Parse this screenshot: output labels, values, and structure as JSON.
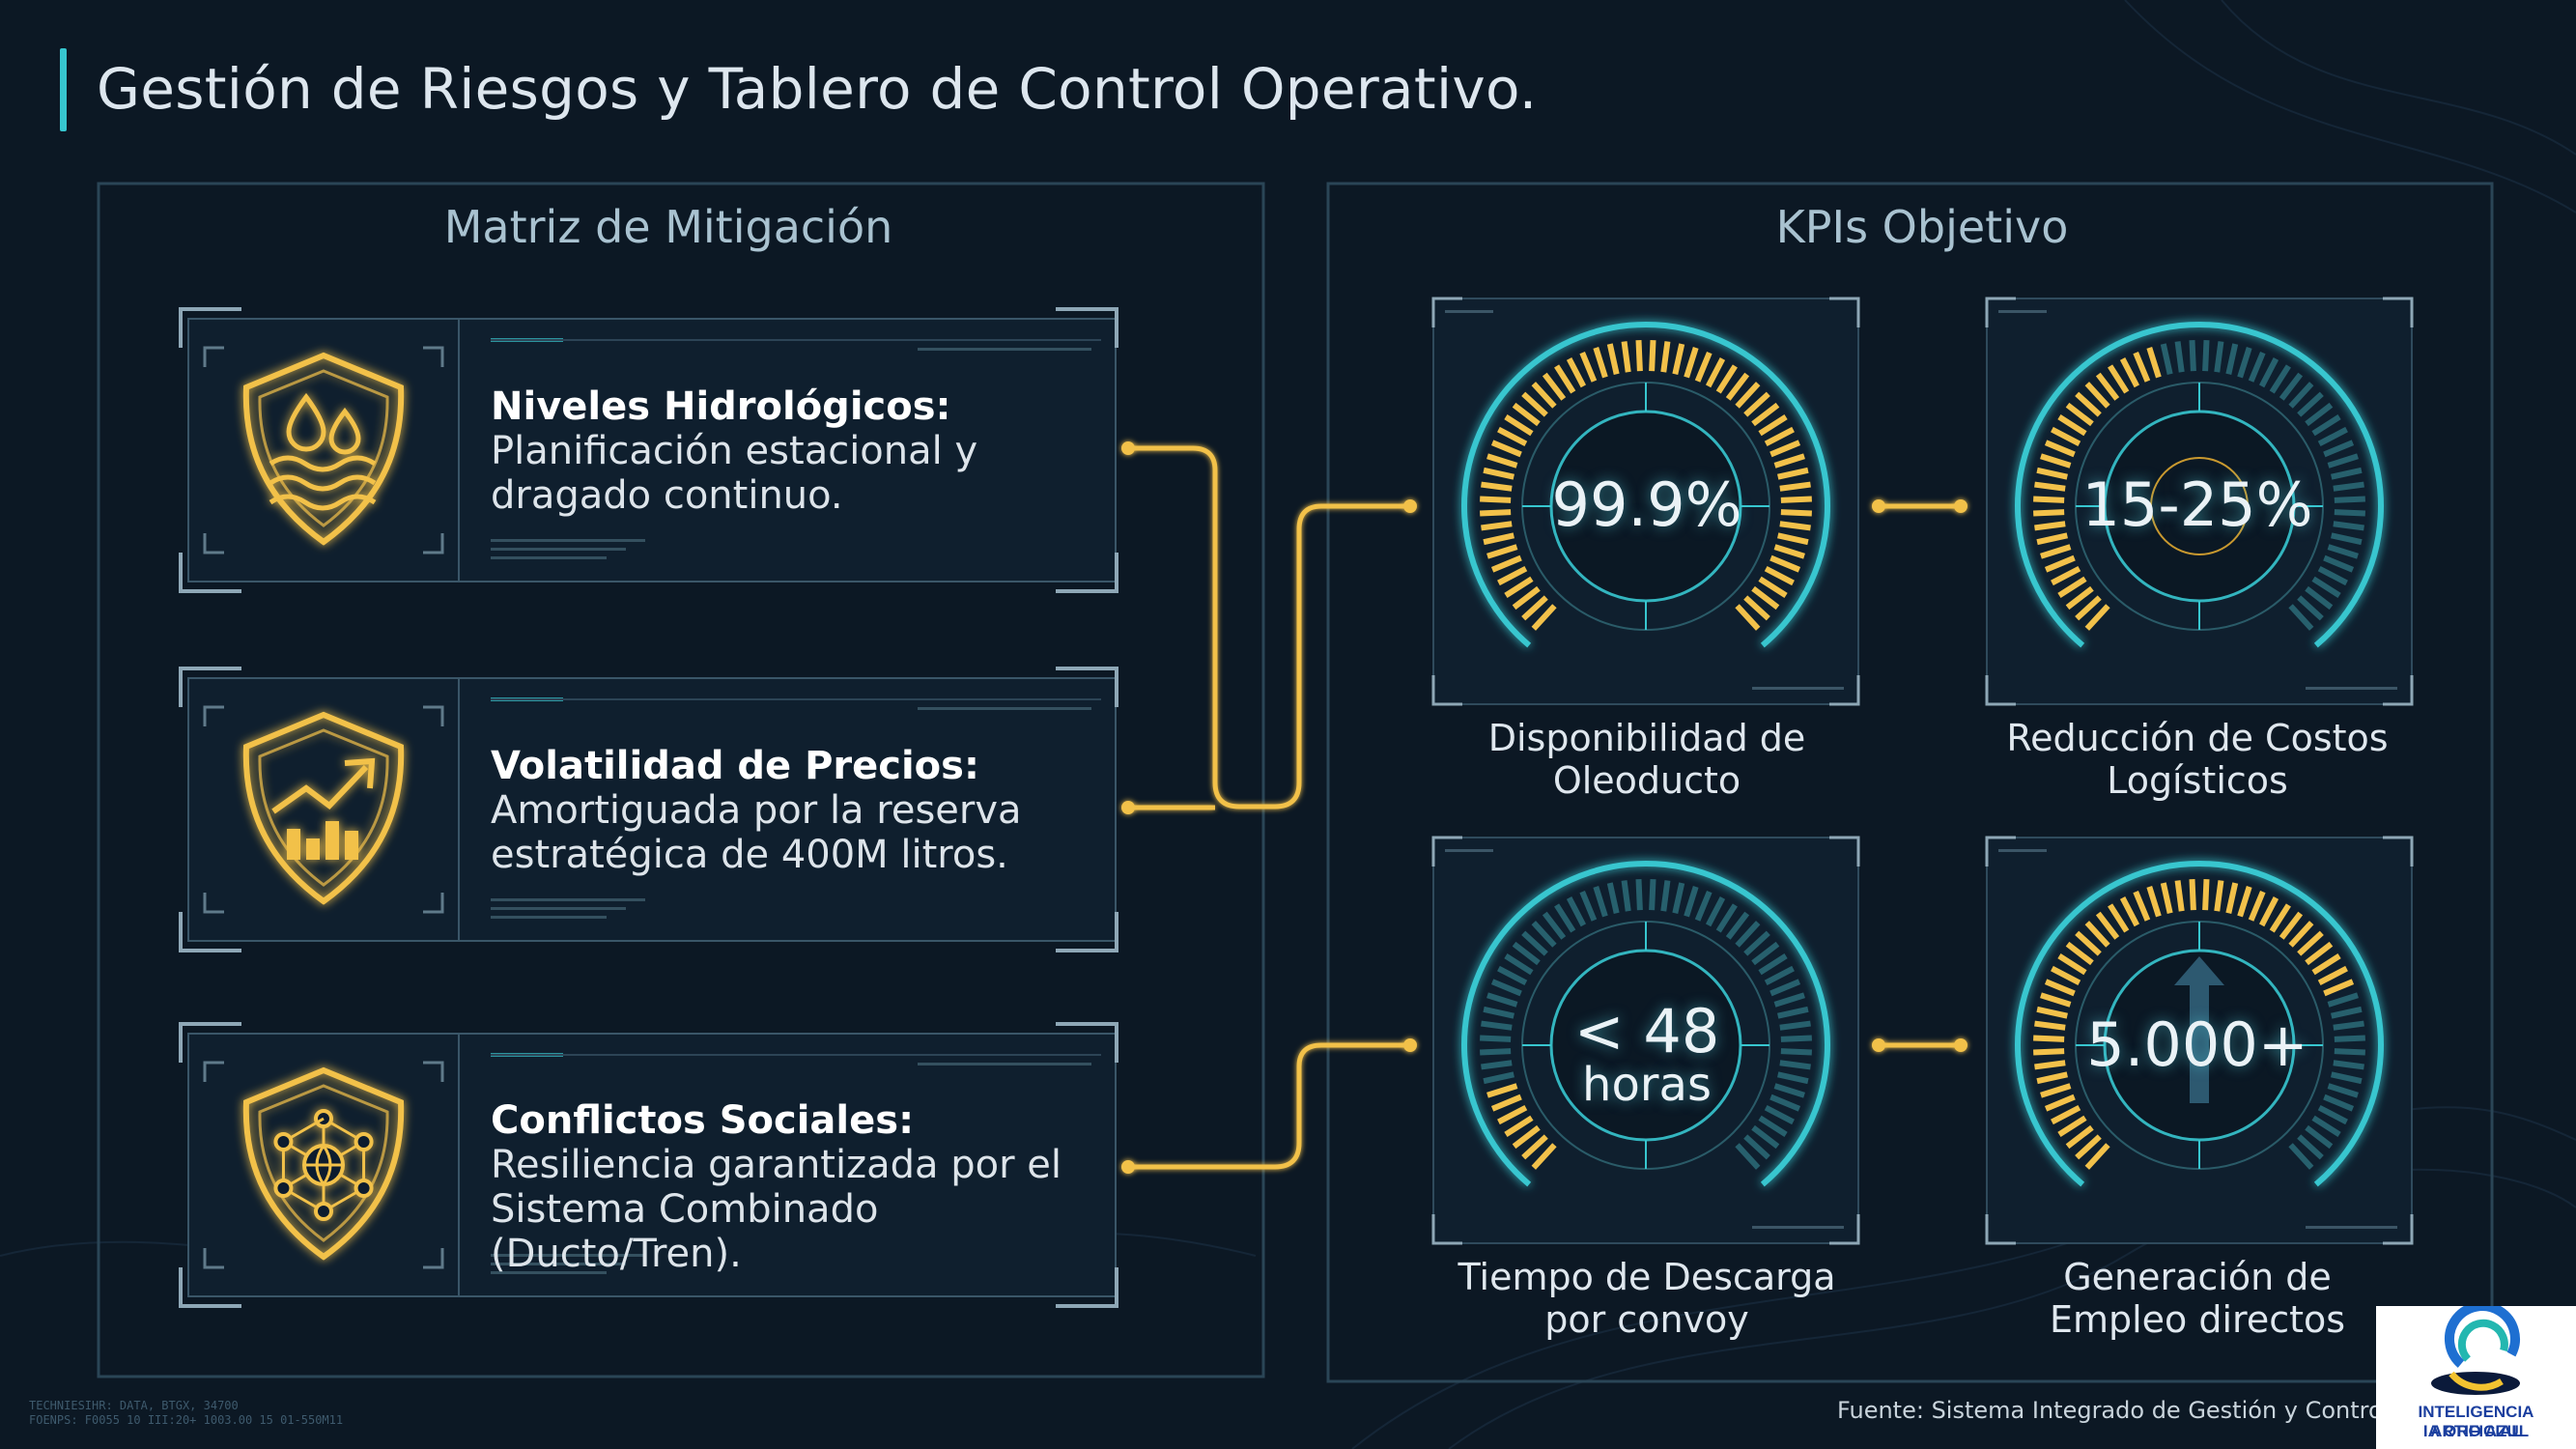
{
  "page": {
    "title": "Gestión de Riesgos y Tablero de Control Operativo."
  },
  "mitigation": {
    "title": "Matriz de Mitigación",
    "items": [
      {
        "icon": "water-drops-shield-icon",
        "head": "Niveles Hidrológicos:",
        "body_line1": "Planificación estacional y",
        "body_line2": "dragado continuo."
      },
      {
        "icon": "rising-chart-shield-icon",
        "head": "Volatilidad de Precios:",
        "body_line1": "Amortiguada por la reserva",
        "body_line2": "estratégica de 400M litros."
      },
      {
        "icon": "network-globe-shield-icon",
        "head": "Conflictos Sociales:",
        "body_line1": "Resiliencia garantizada por el",
        "body_line2": "Sistema Combinado (Ducto/Tren)."
      }
    ]
  },
  "kpis": {
    "title": "KPIs Objetivo",
    "items": [
      {
        "value": "99.9%",
        "label_line1": "Disponibilidad de",
        "label_line2": "Oleoducto",
        "gauge_fill": 0.999
      },
      {
        "value": "15-25%",
        "label_line1": "Reducción de Costos",
        "label_line2": "Logísticos",
        "gauge_fill": 0.45
      },
      {
        "value_line1": "< 48",
        "value_line2": "horas",
        "label_line1": "Tiempo de Descarga",
        "label_line2": "por convoy",
        "gauge_fill": 0.12
      },
      {
        "value": "5.000+",
        "label_line1": "Generación de",
        "label_line2": "Empleo directos",
        "gauge_fill": 0.75
      }
    ]
  },
  "footer": {
    "source": "Fuente: Sistema Integrado de Gestión y Control SCA",
    "micro_line1": "TECHNIESIHR: DATA, BTGX, 34700",
    "micro_line2": "FOENPS: F0055 10 III:20+ 1003.00 15 01-550M11"
  },
  "logo": {
    "line1": "INTELIGENCIA ARTIFICIAL",
    "line2": "IA ORO AZUL"
  },
  "colors": {
    "background": "#0c1824",
    "accent_cyan": "#37c6cf",
    "accent_gold": "#f2c14a",
    "panel_border": "#2a4556"
  }
}
